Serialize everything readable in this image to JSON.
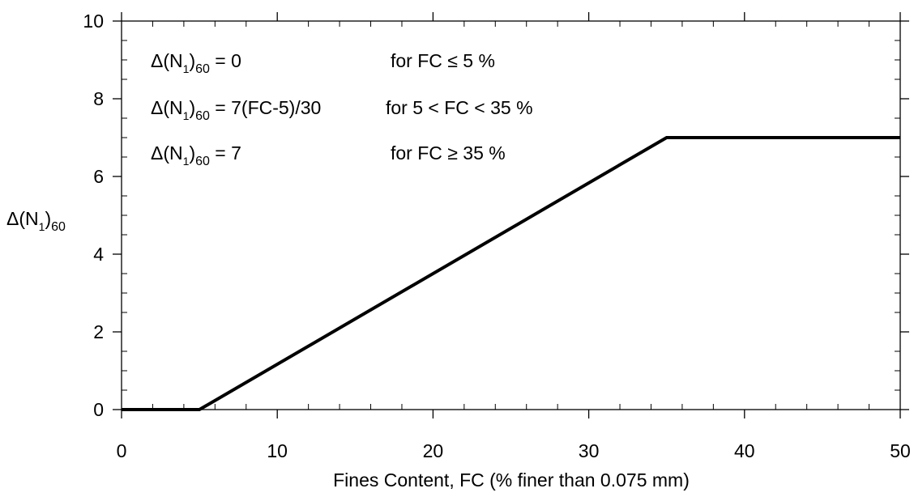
{
  "chart_data": {
    "type": "line",
    "xlabel": "Fines Content, FC (% finer than 0.075 mm)",
    "ylabel": {
      "prefix": "Δ(N",
      "sub1": "1",
      "close": ")",
      "sub2": "60"
    },
    "xlim": [
      0,
      50
    ],
    "ylim": [
      0,
      10
    ],
    "x_major_ticks": [
      0,
      10,
      20,
      30,
      40,
      50
    ],
    "y_major_ticks": [
      0,
      2,
      4,
      6,
      8,
      10
    ],
    "x_minor_step": 2,
    "y_minor_step": 0.5,
    "grid": false,
    "series": [
      {
        "x": [
          0,
          5,
          35,
          50
        ],
        "y": [
          0,
          0,
          7,
          7
        ],
        "color": "#000000"
      }
    ],
    "annotations": [
      {
        "lhs_prefix": "Δ(N",
        "lhs_sub1": "1",
        "lhs_close": ")",
        "lhs_sub2": "60",
        "rhs": "=  0",
        "condition": "for  FC ≤ 5 %"
      },
      {
        "lhs_prefix": "Δ(N",
        "lhs_sub1": "1",
        "lhs_close": ")",
        "lhs_sub2": "60",
        "rhs": "= 7(FC-5)/30",
        "condition": "for  5 < FC < 35 %"
      },
      {
        "lhs_prefix": "Δ(N",
        "lhs_sub1": "1",
        "lhs_close": ")",
        "lhs_sub2": "60",
        "rhs": "=  7",
        "condition": "for  FC ≥ 35 %"
      }
    ]
  }
}
